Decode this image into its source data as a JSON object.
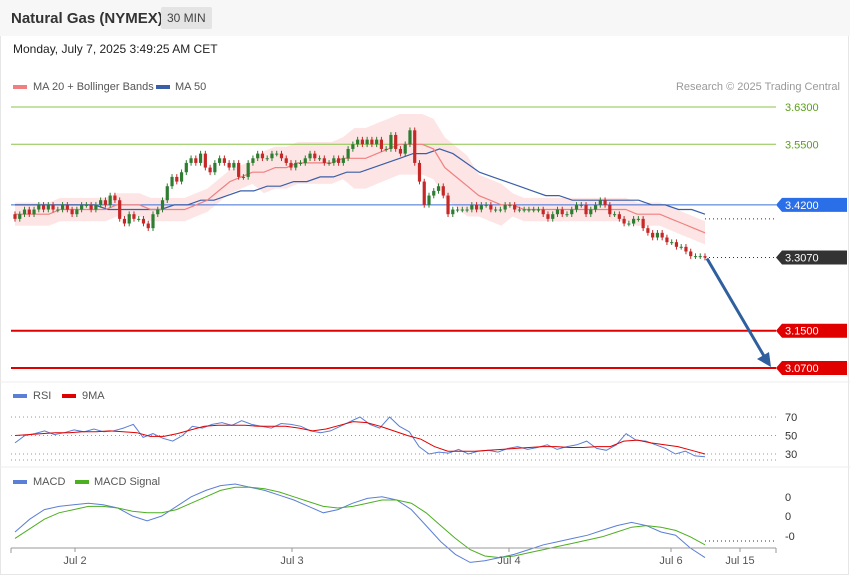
{
  "header": {
    "instrument": "Natural Gas (NYMEX)",
    "timeframe": "30 MIN",
    "datetime": "Monday, July 7, 2025 3:49:25 AM CET"
  },
  "legend": {
    "ma20": "MA 20 + Bollinger Bands",
    "ma50": "MA 50",
    "copyright": "Research © 2025 Trading Central",
    "rsi": "RSI",
    "rsi_ma": "9MA",
    "macd": "MACD",
    "macd_signal": "MACD Signal"
  },
  "colors": {
    "ma20": "#f08080",
    "ma50": "#3a5fa8",
    "bollinger_fill": "#fde0e0",
    "up_candle": "#2e7d32",
    "down_candle": "#c62828",
    "target_line": "#e00000",
    "green_line": "#8bc34a",
    "blue_line": "#3a6fd8",
    "arrow": "#2f5f9e"
  },
  "chart_data": [
    {
      "type": "line",
      "title": "",
      "note": "Price panel: candlesticks with MA 20 + Bollinger Bands and MA 50",
      "x_ticks": [
        "Jul 2",
        "Jul 3",
        "Jul 4",
        "Jul 6",
        "Jul 15"
      ],
      "ylim": [
        3.04,
        3.69
      ],
      "levels": [
        {
          "label": "3.6300",
          "value": 3.63,
          "style": "green"
        },
        {
          "label": "3.5500",
          "value": 3.55,
          "style": "green"
        },
        {
          "label": "3.4200",
          "value": 3.42,
          "style": "blue"
        },
        {
          "label": "3.3070",
          "value": 3.307,
          "style": "current"
        },
        {
          "label": "3.1500",
          "value": 3.15,
          "style": "red"
        },
        {
          "label": "3.0700",
          "value": 3.07,
          "style": "red"
        }
      ],
      "close_series": [
        3.39,
        3.4,
        3.41,
        3.4,
        3.41,
        3.42,
        3.41,
        3.42,
        3.41,
        3.41,
        3.42,
        3.41,
        3.4,
        3.41,
        3.42,
        3.42,
        3.41,
        3.42,
        3.43,
        3.42,
        3.44,
        3.43,
        3.39,
        3.38,
        3.4,
        3.39,
        3.39,
        3.38,
        3.37,
        3.4,
        3.41,
        3.43,
        3.46,
        3.48,
        3.47,
        3.49,
        3.51,
        3.52,
        3.51,
        3.53,
        3.5,
        3.49,
        3.51,
        3.52,
        3.51,
        3.5,
        3.51,
        3.48,
        3.48,
        3.51,
        3.52,
        3.53,
        3.52,
        3.52,
        3.53,
        3.53,
        3.52,
        3.51,
        3.5,
        3.51,
        3.51,
        3.52,
        3.53,
        3.52,
        3.52,
        3.51,
        3.51,
        3.52,
        3.51,
        3.52,
        3.54,
        3.55,
        3.56,
        3.55,
        3.56,
        3.55,
        3.56,
        3.54,
        3.54,
        3.57,
        3.54,
        3.53,
        3.55,
        3.58,
        3.51,
        3.47,
        3.42,
        3.44,
        3.45,
        3.46,
        3.44,
        3.4,
        3.41,
        3.41,
        3.41,
        3.41,
        3.42,
        3.41,
        3.42,
        3.42,
        3.41,
        3.41,
        3.41,
        3.42,
        3.42,
        3.41,
        3.41,
        3.41,
        3.41,
        3.41,
        3.41,
        3.4,
        3.39,
        3.4,
        3.41,
        3.4,
        3.4,
        3.41,
        3.42,
        3.42,
        3.4,
        3.41,
        3.42,
        3.43,
        3.42,
        3.4,
        3.4,
        3.39,
        3.38,
        3.38,
        3.39,
        3.39,
        3.37,
        3.36,
        3.35,
        3.36,
        3.35,
        3.34,
        3.34,
        3.33,
        3.33,
        3.32,
        3.31,
        3.31,
        3.31,
        3.307
      ],
      "ma20_series": [
        3.4,
        3.4,
        3.4,
        3.4,
        3.41,
        3.41,
        3.41,
        3.41,
        3.41,
        3.42,
        3.42,
        3.42,
        3.41,
        3.41,
        3.41,
        3.41,
        3.42,
        3.43,
        3.45,
        3.47,
        3.48,
        3.49,
        3.49,
        3.5,
        3.5,
        3.51,
        3.51,
        3.51,
        3.51,
        3.52,
        3.52,
        3.52,
        3.53,
        3.54,
        3.55,
        3.55,
        3.55,
        3.54,
        3.5,
        3.48,
        3.46,
        3.44,
        3.43,
        3.42,
        3.42,
        3.41,
        3.41,
        3.41,
        3.41,
        3.41,
        3.41,
        3.41,
        3.41,
        3.41,
        3.41,
        3.4,
        3.4,
        3.4,
        3.39,
        3.38,
        3.37,
        3.36
      ],
      "ma50_series": [
        3.42,
        3.42,
        3.42,
        3.42,
        3.42,
        3.42,
        3.42,
        3.41,
        3.41,
        3.41,
        3.41,
        3.41,
        3.42,
        3.42,
        3.43,
        3.43,
        3.44,
        3.45,
        3.45,
        3.46,
        3.46,
        3.47,
        3.47,
        3.48,
        3.48,
        3.49,
        3.49,
        3.5,
        3.51,
        3.52,
        3.53,
        3.53,
        3.54,
        3.53,
        3.51,
        3.49,
        3.48,
        3.47,
        3.46,
        3.45,
        3.44,
        3.44,
        3.43,
        3.43,
        3.43,
        3.43,
        3.43,
        3.43,
        3.42,
        3.42,
        3.41,
        3.41,
        3.4
      ]
    },
    {
      "type": "line",
      "title": "",
      "note": "RSI panel",
      "series": [
        {
          "name": "RSI",
          "values": [
            42,
            50,
            52,
            55,
            51,
            53,
            56,
            54,
            57,
            54,
            55,
            58,
            62,
            48,
            52,
            47,
            44,
            50,
            60,
            58,
            62,
            64,
            61,
            66,
            62,
            60,
            58,
            63,
            62,
            60,
            55,
            53,
            55,
            60,
            65,
            70,
            62,
            58,
            70,
            60,
            54,
            38,
            30,
            32,
            31,
            35,
            30,
            33,
            34,
            32,
            36,
            38,
            35,
            37,
            40,
            35,
            38,
            40,
            44,
            36,
            34,
            40,
            52,
            45,
            44,
            40,
            36,
            30,
            33,
            28,
            27
          ]
        },
        {
          "name": "9MA",
          "values": [
            50,
            51,
            52,
            53,
            53,
            54,
            54,
            55,
            54,
            53,
            49,
            49,
            52,
            56,
            60,
            61,
            61,
            61,
            60,
            60,
            60,
            58,
            55,
            57,
            61,
            65,
            64,
            60,
            55,
            50,
            46,
            38,
            33,
            33,
            33,
            34,
            35,
            36,
            37,
            38,
            38,
            37,
            37,
            38,
            38,
            44,
            45,
            42,
            40,
            38,
            34,
            30
          ]
        }
      ],
      "y_ticks": [
        "70",
        "50",
        "30"
      ],
      "ylim": [
        20,
        80
      ]
    },
    {
      "type": "line",
      "title": "",
      "note": "MACD panel",
      "series": [
        {
          "name": "MACD",
          "values": [
            -0.01,
            -0.002,
            0.004,
            0.006,
            0.007,
            0.008,
            0.007,
            0.005,
            0.0,
            -0.003,
            0.0,
            0.006,
            0.012,
            0.016,
            0.019,
            0.02,
            0.018,
            0.016,
            0.013,
            0.01,
            0.006,
            0.002,
            0.004,
            0.008,
            0.011,
            0.012,
            0.01,
            0.004,
            -0.006,
            -0.016,
            -0.024,
            -0.029,
            -0.028,
            -0.026,
            -0.024,
            -0.021,
            -0.018,
            -0.016,
            -0.014,
            -0.012,
            -0.009,
            -0.006,
            -0.004,
            -0.006,
            -0.01,
            -0.012,
            -0.02,
            -0.026
          ]
        },
        {
          "name": "MACD Signal",
          "values": [
            -0.014,
            -0.008,
            -0.002,
            0.002,
            0.004,
            0.006,
            0.006,
            0.005,
            0.003,
            0.002,
            0.002,
            0.004,
            0.008,
            0.012,
            0.016,
            0.018,
            0.018,
            0.017,
            0.015,
            0.012,
            0.009,
            0.006,
            0.005,
            0.006,
            0.008,
            0.01,
            0.01,
            0.008,
            0.002,
            -0.006,
            -0.014,
            -0.021,
            -0.025,
            -0.026,
            -0.025,
            -0.023,
            -0.021,
            -0.019,
            -0.017,
            -0.015,
            -0.013,
            -0.01,
            -0.007,
            -0.006,
            -0.007,
            -0.009,
            -0.013,
            -0.018
          ]
        }
      ],
      "y_ticks": [
        "0",
        "0",
        "-0"
      ],
      "ylim": [
        -0.034,
        0.024
      ]
    }
  ]
}
